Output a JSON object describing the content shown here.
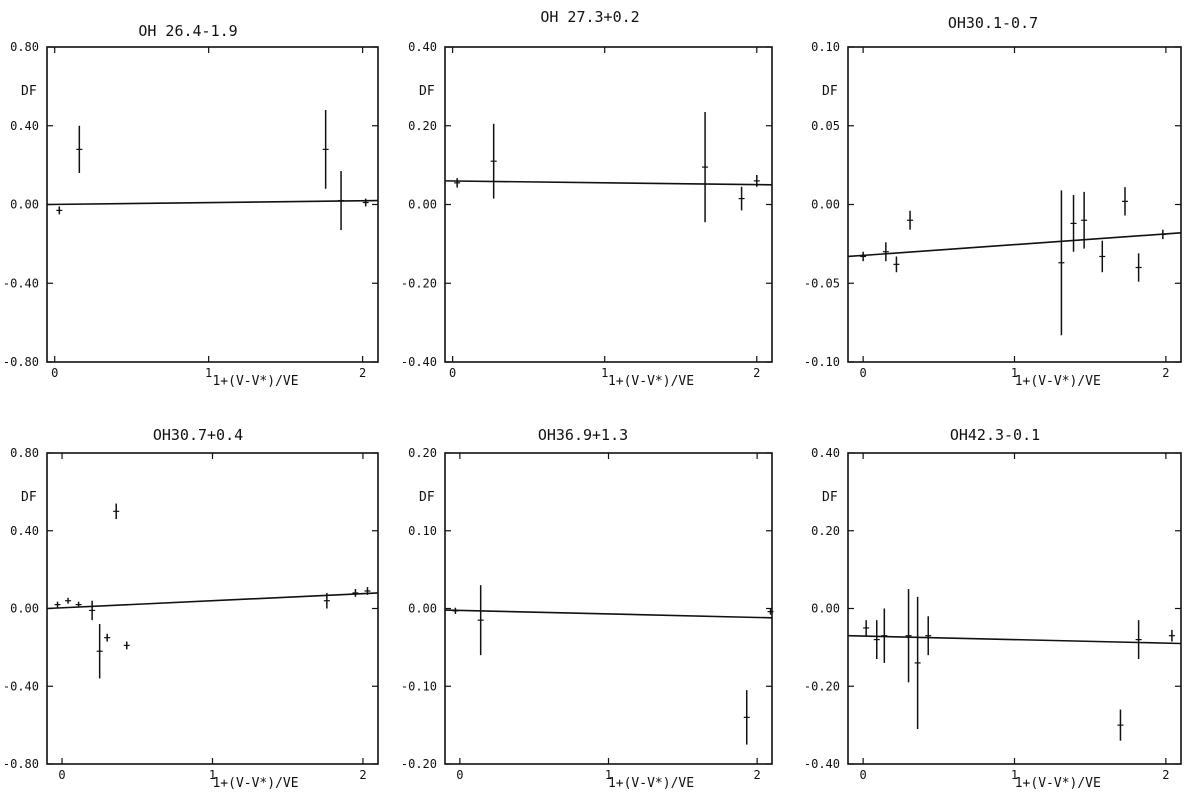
{
  "chart_data": [
    {
      "type": "scatter",
      "title": "OH 26.4-1.9",
      "xlabel": "1+(V-V*)/VE",
      "ylabel": "DF",
      "xlim": [
        -0.05,
        2.1
      ],
      "ylim": [
        -0.8,
        0.8
      ],
      "xticks": [
        "0",
        "1",
        "2"
      ],
      "yticks": [
        "0.80",
        "0.40",
        "0.00",
        "-0.40",
        "-0.80"
      ],
      "grid": false,
      "fit_line": [
        [
          -0.05,
          0.0
        ],
        [
          2.1,
          0.02
        ]
      ],
      "points": [
        {
          "x": 0.03,
          "y": -0.03,
          "err": 0.02
        },
        {
          "x": 0.16,
          "y": 0.28,
          "err": 0.12
        },
        {
          "x": 1.76,
          "y": 0.28,
          "err": 0.2
        },
        {
          "x": 1.86,
          "y": 0.02,
          "err": 0.15
        },
        {
          "x": 2.02,
          "y": 0.01,
          "err": 0.02
        }
      ]
    },
    {
      "type": "scatter",
      "title": "OH 27.3+0.2",
      "xlabel": "1+(V-V*)/VE",
      "ylabel": "DF",
      "xlim": [
        -0.05,
        2.1
      ],
      "ylim": [
        -0.4,
        0.4
      ],
      "xticks": [
        "0",
        "1",
        "2"
      ],
      "yticks": [
        "0.40",
        "0.20",
        "0.00",
        "-0.20",
        "-0.40"
      ],
      "grid": false,
      "fit_line": [
        [
          -0.05,
          0.06
        ],
        [
          2.1,
          0.05
        ]
      ],
      "points": [
        {
          "x": 0.03,
          "y": 0.055,
          "err": 0.012
        },
        {
          "x": 0.27,
          "y": 0.11,
          "err": 0.095
        },
        {
          "x": 1.66,
          "y": 0.095,
          "err": 0.14
        },
        {
          "x": 1.9,
          "y": 0.015,
          "err": 0.03
        },
        {
          "x": 2.0,
          "y": 0.06,
          "err": 0.015
        }
      ]
    },
    {
      "type": "scatter",
      "title": "OH30.1-0.7",
      "xlabel": "1+(V-V*)/VE",
      "ylabel": "DF",
      "xlim": [
        -0.1,
        2.1
      ],
      "ylim": [
        -0.1,
        0.1
      ],
      "xticks": [
        "0",
        "1",
        "2"
      ],
      "yticks": [
        "0.10",
        "0.05",
        "0.00",
        "-0.05",
        "-0.10"
      ],
      "grid": false,
      "fit_line": [
        [
          -0.1,
          -0.033
        ],
        [
          2.1,
          -0.018
        ]
      ],
      "points": [
        {
          "x": 0.0,
          "y": -0.033,
          "err": 0.003
        },
        {
          "x": 0.15,
          "y": -0.03,
          "err": 0.006
        },
        {
          "x": 0.22,
          "y": -0.038,
          "err": 0.005
        },
        {
          "x": 0.31,
          "y": -0.01,
          "err": 0.006
        },
        {
          "x": 1.31,
          "y": -0.037,
          "err": 0.046
        },
        {
          "x": 1.39,
          "y": -0.012,
          "err": 0.018
        },
        {
          "x": 1.46,
          "y": -0.01,
          "err": 0.018
        },
        {
          "x": 1.58,
          "y": -0.033,
          "err": 0.01
        },
        {
          "x": 1.73,
          "y": 0.002,
          "err": 0.009
        },
        {
          "x": 1.82,
          "y": -0.04,
          "err": 0.009
        },
        {
          "x": 1.98,
          "y": -0.019,
          "err": 0.003
        }
      ]
    },
    {
      "type": "scatter",
      "title": "OH30.7+0.4",
      "xlabel": "1+(V-V*)/VE",
      "ylabel": "DF",
      "xlim": [
        -0.1,
        2.1
      ],
      "ylim": [
        -0.8,
        0.8
      ],
      "xticks": [
        "0",
        "1",
        "2"
      ],
      "yticks": [
        "0.80",
        "0.40",
        "0.00",
        "-0.40",
        "-0.80"
      ],
      "grid": false,
      "fit_line": [
        [
          -0.1,
          0.0
        ],
        [
          2.1,
          0.08
        ]
      ],
      "points": [
        {
          "x": -0.03,
          "y": 0.02,
          "err": 0.015
        },
        {
          "x": 0.04,
          "y": 0.04,
          "err": 0.015
        },
        {
          "x": 0.11,
          "y": 0.02,
          "err": 0.015
        },
        {
          "x": 0.2,
          "y": -0.01,
          "err": 0.05
        },
        {
          "x": 0.25,
          "y": -0.22,
          "err": 0.14
        },
        {
          "x": 0.3,
          "y": -0.15,
          "err": 0.02
        },
        {
          "x": 0.36,
          "y": 0.5,
          "err": 0.04
        },
        {
          "x": 0.43,
          "y": -0.19,
          "err": 0.02
        },
        {
          "x": 1.76,
          "y": 0.04,
          "err": 0.04
        },
        {
          "x": 1.95,
          "y": 0.08,
          "err": 0.02
        },
        {
          "x": 2.03,
          "y": 0.09,
          "err": 0.02
        }
      ]
    },
    {
      "type": "scatter",
      "title": "OH36.9+1.3",
      "xlabel": "1+(V-V*)/VE",
      "ylabel": "DF",
      "xlim": [
        -0.1,
        2.1
      ],
      "ylim": [
        -0.2,
        0.2
      ],
      "xticks": [
        "0",
        "1",
        "2"
      ],
      "yticks": [
        "0.20",
        "0.10",
        "0.00",
        "-0.10",
        "-0.20"
      ],
      "grid": false,
      "fit_line": [
        [
          -0.1,
          -0.002
        ],
        [
          2.1,
          -0.012
        ]
      ],
      "points": [
        {
          "x": -0.03,
          "y": -0.003,
          "err": 0.004
        },
        {
          "x": 0.14,
          "y": -0.015,
          "err": 0.045
        },
        {
          "x": 1.93,
          "y": -0.14,
          "err": 0.035
        },
        {
          "x": 2.09,
          "y": -0.004,
          "err": 0.004
        }
      ]
    },
    {
      "type": "scatter",
      "title": "OH42.3-0.1",
      "xlabel": "1+(V-V*)/VE",
      "ylabel": "DF",
      "xlim": [
        -0.1,
        2.1
      ],
      "ylim": [
        -0.4,
        0.4
      ],
      "xticks": [
        "0",
        "1",
        "2"
      ],
      "yticks": [
        "0.40",
        "0.20",
        "0.00",
        "-0.20",
        "-0.40"
      ],
      "grid": false,
      "fit_line": [
        [
          -0.1,
          -0.07
        ],
        [
          2.1,
          -0.09
        ]
      ],
      "points": [
        {
          "x": 0.02,
          "y": -0.05,
          "err": 0.02
        },
        {
          "x": 0.09,
          "y": -0.08,
          "err": 0.05
        },
        {
          "x": 0.14,
          "y": -0.07,
          "err": 0.07
        },
        {
          "x": 0.3,
          "y": -0.07,
          "err": 0.12
        },
        {
          "x": 0.36,
          "y": -0.14,
          "err": 0.17
        },
        {
          "x": 0.43,
          "y": -0.07,
          "err": 0.05
        },
        {
          "x": 1.82,
          "y": -0.08,
          "err": 0.05
        },
        {
          "x": 1.7,
          "y": -0.3,
          "err": 0.04
        },
        {
          "x": 2.04,
          "y": -0.07,
          "err": 0.015
        }
      ]
    }
  ]
}
